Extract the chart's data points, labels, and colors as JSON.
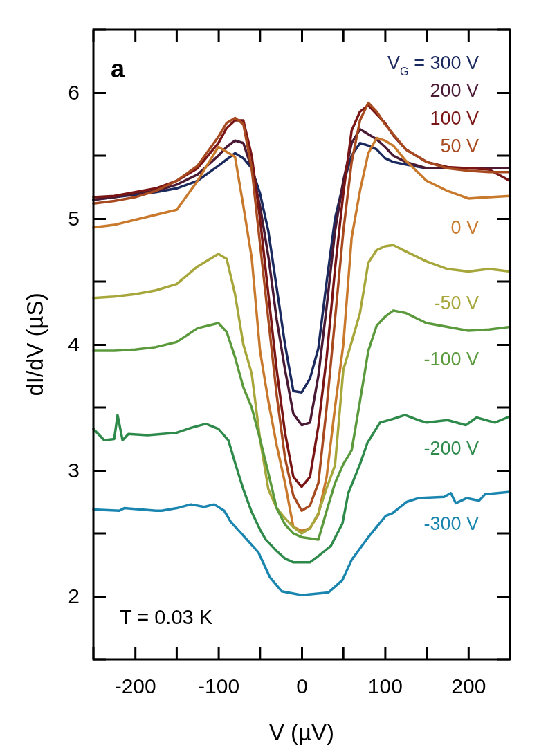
{
  "chart_data": {
    "type": "line",
    "xlabel": "V (µV)",
    "ylabel": "dI/dV (µS)",
    "annotations": [
      "a",
      "T = 0.03 K"
    ],
    "x": [
      -250,
      -225,
      -200,
      -175,
      -150,
      -125,
      -100,
      -90,
      -80,
      -70,
      -60,
      -50,
      -40,
      -30,
      -20,
      -10,
      0,
      10,
      20,
      30,
      40,
      50,
      60,
      70,
      80,
      90,
      100,
      110,
      125,
      150,
      175,
      200,
      225,
      250
    ],
    "xlim": [
      -250,
      250
    ],
    "ylim": [
      1.5,
      6.5
    ],
    "xticks": [
      -200,
      -100,
      0,
      100,
      200
    ],
    "yticks": [
      2,
      3,
      4,
      5,
      6
    ],
    "grid": false,
    "legend": "right",
    "marker": "none",
    "line_style": "solid",
    "series": [
      {
        "name": "V$_{G}$ = 300 V",
        "color": "#1b2a5e",
        "values": [
          5.15,
          5.17,
          5.19,
          5.21,
          5.24,
          5.3,
          5.42,
          5.47,
          5.52,
          5.48,
          5.4,
          5.2,
          4.9,
          4.45,
          4.0,
          3.63,
          3.62,
          3.73,
          3.97,
          4.5,
          5.0,
          5.28,
          5.5,
          5.6,
          5.58,
          5.55,
          5.48,
          5.45,
          5.43,
          5.4,
          5.4,
          5.4,
          5.4,
          5.4
        ]
      },
      {
        "name": "200 V",
        "color": "#4a1a35",
        "values": [
          5.15,
          5.17,
          5.2,
          5.22,
          5.27,
          5.35,
          5.5,
          5.57,
          5.62,
          5.6,
          5.4,
          5.1,
          4.7,
          4.2,
          3.8,
          3.45,
          3.36,
          3.38,
          3.75,
          4.3,
          4.9,
          5.3,
          5.6,
          5.71,
          5.67,
          5.63,
          5.57,
          5.5,
          5.45,
          5.4,
          5.4,
          5.4,
          5.4,
          5.4
        ]
      },
      {
        "name": "100 V",
        "color": "#7a1515",
        "values": [
          5.17,
          5.18,
          5.21,
          5.24,
          5.3,
          5.4,
          5.6,
          5.72,
          5.78,
          5.78,
          5.5,
          5.0,
          4.4,
          3.8,
          3.3,
          2.95,
          2.87,
          2.95,
          3.35,
          3.9,
          4.6,
          5.2,
          5.7,
          5.85,
          5.9,
          5.83,
          5.76,
          5.66,
          5.55,
          5.45,
          5.41,
          5.4,
          5.39,
          5.3
        ]
      },
      {
        "name": "50 V",
        "color": "#a84a20",
        "values": [
          5.12,
          5.14,
          5.17,
          5.22,
          5.3,
          5.42,
          5.65,
          5.76,
          5.8,
          5.75,
          5.4,
          4.8,
          4.2,
          3.6,
          3.1,
          2.8,
          2.68,
          2.72,
          2.9,
          3.5,
          4.2,
          4.9,
          5.45,
          5.78,
          5.92,
          5.85,
          5.75,
          5.67,
          5.55,
          5.45,
          5.4,
          5.38,
          5.37,
          5.37
        ]
      },
      {
        "name": "0 V",
        "color": "#c8792c",
        "values": [
          4.93,
          4.95,
          4.99,
          5.03,
          5.07,
          5.3,
          5.57,
          5.53,
          5.49,
          5.1,
          4.69,
          3.95,
          3.55,
          3.2,
          2.9,
          2.55,
          2.52,
          2.54,
          2.65,
          2.95,
          3.5,
          4.0,
          4.85,
          5.22,
          5.52,
          5.64,
          5.62,
          5.58,
          5.46,
          5.3,
          5.22,
          5.16,
          5.17,
          5.18
        ]
      },
      {
        "name": "-50 V",
        "color": "#a6a63a",
        "values": [
          4.37,
          4.38,
          4.4,
          4.43,
          4.48,
          4.62,
          4.72,
          4.68,
          4.4,
          4.0,
          3.77,
          3.25,
          2.85,
          2.7,
          2.62,
          2.55,
          2.5,
          2.54,
          2.66,
          2.86,
          3.04,
          3.8,
          4.02,
          4.25,
          4.65,
          4.75,
          4.78,
          4.79,
          4.74,
          4.66,
          4.6,
          4.58,
          4.6,
          4.58
        ]
      },
      {
        "name": "-100 V",
        "color": "#5b9a3c",
        "values": [
          3.95,
          3.95,
          3.96,
          3.98,
          4.02,
          4.13,
          4.17,
          4.1,
          3.9,
          3.66,
          3.5,
          3.25,
          2.98,
          2.7,
          2.57,
          2.5,
          2.47,
          2.46,
          2.45,
          2.68,
          2.9,
          3.05,
          3.16,
          3.55,
          3.95,
          4.15,
          4.22,
          4.27,
          4.25,
          4.17,
          4.14,
          4.11,
          4.12,
          4.14
        ]
      },
      {
        "name": "-200 V",
        "color": "#2e8a4a",
        "x": [
          -250,
          -237,
          -225,
          -221,
          -215,
          -208,
          -185,
          -150,
          -132,
          -115,
          -100,
          -88,
          -79,
          -70,
          -60,
          -50,
          -43,
          -30,
          -20,
          -10,
          0,
          10,
          20,
          35,
          49,
          56,
          70,
          79,
          94,
          110,
          124,
          140,
          150,
          175,
          197,
          210,
          232,
          250
        ],
        "values": [
          3.33,
          3.24,
          3.25,
          3.44,
          3.24,
          3.29,
          3.28,
          3.3,
          3.34,
          3.37,
          3.33,
          3.24,
          3.04,
          2.85,
          2.67,
          2.53,
          2.45,
          2.36,
          2.3,
          2.27,
          2.27,
          2.27,
          2.32,
          2.4,
          2.58,
          2.82,
          3.05,
          3.22,
          3.38,
          3.41,
          3.44,
          3.4,
          3.38,
          3.4,
          3.36,
          3.42,
          3.38,
          3.43
        ]
      },
      {
        "name": "-300 V",
        "color": "#1a86b0",
        "x": [
          -250,
          -219,
          -213,
          -175,
          -168,
          -150,
          -133,
          -117,
          -105,
          -93,
          -85,
          -71,
          -52,
          -38,
          -24,
          0,
          32,
          49,
          60,
          80,
          101,
          109,
          126,
          140,
          171,
          179,
          185,
          198,
          213,
          220,
          250
        ],
        "values": [
          2.69,
          2.68,
          2.7,
          2.68,
          2.68,
          2.7,
          2.73,
          2.71,
          2.73,
          2.68,
          2.59,
          2.49,
          2.35,
          2.15,
          2.04,
          2.01,
          2.03,
          2.13,
          2.29,
          2.47,
          2.64,
          2.66,
          2.75,
          2.78,
          2.79,
          2.82,
          2.74,
          2.78,
          2.76,
          2.81,
          2.83
        ]
      }
    ]
  }
}
